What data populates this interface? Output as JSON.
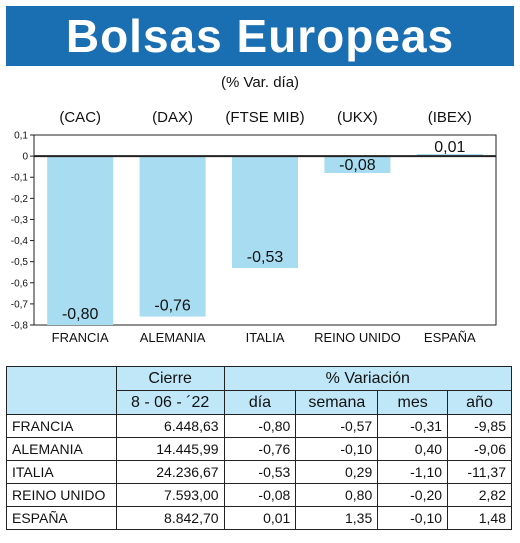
{
  "header": {
    "title": "Bolsas Europeas",
    "subtitle": "(% Var. día)"
  },
  "chart_data": {
    "type": "bar",
    "index_labels": [
      "(CAC)",
      "(DAX)",
      "(FTSE MIB)",
      "(UKX)",
      "(IBEX)"
    ],
    "categories": [
      "FRANCIA",
      "ALEMANIA",
      "ITALIA",
      "REINO UNIDO",
      "ESPAÑA"
    ],
    "values": [
      -0.8,
      -0.76,
      -0.53,
      -0.08,
      0.01
    ],
    "value_labels": [
      "-0,80",
      "-0,76",
      "-0,53",
      "-0,08",
      "0,01"
    ],
    "yticks": [
      "0,1",
      "0",
      "-0,1",
      "-0,2",
      "-0,3",
      "-0,4",
      "-0,5",
      "-0,6",
      "-0,7",
      "-0,8"
    ],
    "ylim": [
      -0.8,
      0.1
    ],
    "bar_color": "#a8dcf1",
    "grid": false
  },
  "table": {
    "header_cierre": "Cierre",
    "header_variacion": "% Variación",
    "date": "8 - 06 - ´22",
    "col_dia": "día",
    "col_semana": "semana",
    "col_mes": "mes",
    "col_ano": "año",
    "rows": [
      {
        "country": "FRANCIA",
        "cierre": "6.448,63",
        "dia": "-0,80",
        "semana": "-0,57",
        "mes": "-0,31",
        "ano": "-9,85"
      },
      {
        "country": "ALEMANIA",
        "cierre": "14.445,99",
        "dia": "-0,76",
        "semana": "-0,10",
        "mes": "0,40",
        "ano": "-9,06"
      },
      {
        "country": "ITALIA",
        "cierre": "24.236,67",
        "dia": "-0,53",
        "semana": "0,29",
        "mes": "-1,10",
        "ano": "-11,37"
      },
      {
        "country": "REINO UNIDO",
        "cierre": "7.593,00",
        "dia": "-0,08",
        "semana": "0,80",
        "mes": "-0,20",
        "ano": "2,82"
      },
      {
        "country": "ESPAÑA",
        "cierre": "8.842,70",
        "dia": "0,01",
        "semana": "1,35",
        "mes": "-0,10",
        "ano": "1,48"
      }
    ]
  },
  "colors": {
    "banner": "#1a6fb3",
    "table_header": "#bfe7f8"
  }
}
